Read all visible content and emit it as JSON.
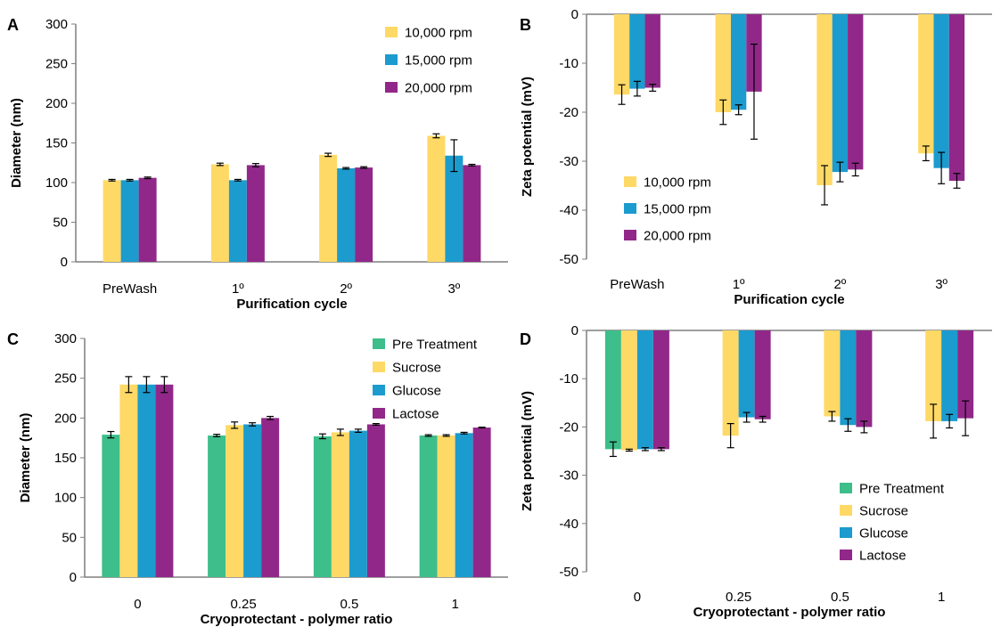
{
  "colors": {
    "rpm10000": "#FFD966",
    "rpm15000": "#1C9BCE",
    "rpm20000": "#912889",
    "pretreatment": "#3DBE8A",
    "sucrose": "#FFD966",
    "glucose": "#1C9BCE",
    "lactose": "#912889",
    "axis": "#7f7f7f",
    "errorbar": "#000000"
  },
  "chart_data": [
    {
      "panel": "A",
      "type": "bar",
      "xlabel": "Purification cycle",
      "ylabel": "Diameter (nm)",
      "categories": [
        "PreWash",
        "1º",
        "2º",
        "3º"
      ],
      "ylim": [
        0,
        300
      ],
      "yticks": [
        0,
        50,
        100,
        150,
        200,
        250,
        300
      ],
      "legend_position": "top-right",
      "series": [
        {
          "name": "10,000 rpm",
          "color_key": "rpm10000",
          "values": [
            103,
            123,
            135,
            159
          ],
          "errors": [
            1,
            1.5,
            2,
            2.5
          ]
        },
        {
          "name": "15,000 rpm",
          "color_key": "rpm15000",
          "values": [
            103,
            103,
            118,
            134
          ],
          "errors": [
            1,
            1,
            1,
            20
          ]
        },
        {
          "name": "20,000 rpm",
          "color_key": "rpm20000",
          "values": [
            106,
            122,
            119,
            122
          ],
          "errors": [
            1,
            2,
            1,
            1
          ]
        }
      ]
    },
    {
      "panel": "B",
      "type": "bar",
      "xlabel": "Purification cycle",
      "ylabel": "Zeta potential (mV)",
      "categories": [
        "PreWash",
        "1º",
        "2º",
        "3º"
      ],
      "ylim": [
        -50,
        0
      ],
      "yticks": [
        0,
        -10,
        -20,
        -30,
        -40,
        -50
      ],
      "legend_position": "bottom-left",
      "series": [
        {
          "name": "10,000 rpm",
          "color_key": "rpm10000",
          "values": [
            -16.4,
            -20.0,
            -34.9,
            -28.4
          ],
          "errors": [
            2.0,
            2.5,
            4.0,
            1.5
          ]
        },
        {
          "name": "15,000 rpm",
          "color_key": "rpm15000",
          "values": [
            -15.2,
            -19.5,
            -32.2,
            -31.4
          ],
          "errors": [
            1.5,
            1.0,
            2.0,
            3.2
          ]
        },
        {
          "name": "20,000 rpm",
          "color_key": "rpm20000",
          "values": [
            -15.0,
            -15.8,
            -31.7,
            -34.0
          ],
          "errors": [
            0.7,
            9.7,
            1.3,
            1.5
          ]
        }
      ]
    },
    {
      "panel": "C",
      "type": "bar",
      "xlabel": "Cryoprotectant  - polymer ratio",
      "ylabel": "Diameter (nm)",
      "categories": [
        "0",
        "0.25",
        "0.5",
        "1"
      ],
      "ylim": [
        0,
        300
      ],
      "yticks": [
        0,
        50,
        100,
        150,
        200,
        250,
        300
      ],
      "legend_position": "top-right",
      "series": [
        {
          "name": "Pre Treatment",
          "color_key": "pretreatment",
          "values": [
            179,
            178,
            177,
            178
          ],
          "errors": [
            4,
            1.5,
            3,
            1
          ]
        },
        {
          "name": "Sucrose",
          "color_key": "sucrose",
          "values": [
            242,
            191,
            182,
            178
          ],
          "errors": [
            10,
            4,
            4,
            1
          ]
        },
        {
          "name": "Glucose",
          "color_key": "glucose",
          "values": [
            242,
            192,
            184,
            181
          ],
          "errors": [
            10,
            2,
            2,
            1
          ]
        },
        {
          "name": "Lactose",
          "color_key": "lactose",
          "values": [
            242,
            200,
            192,
            188
          ],
          "errors": [
            10,
            2,
            1,
            0.5
          ]
        }
      ]
    },
    {
      "panel": "D",
      "type": "bar",
      "xlabel": "Cryoprotectant  - polymer ratio",
      "ylabel": "Zeta potential (mV)",
      "categories": [
        "0",
        "0.25",
        "0.5",
        "1"
      ],
      "ylim": [
        -50,
        0
      ],
      "yticks": [
        0,
        -10,
        -20,
        -30,
        -40,
        -50
      ],
      "legend_position": "bottom-right",
      "series": [
        {
          "name": "Pre Treatment",
          "color_key": "pretreatment",
          "values": [
            -24.6,
            null,
            null,
            null
          ],
          "errors": [
            1.5,
            0,
            0,
            0
          ]
        },
        {
          "name": "Sucrose",
          "color_key": "sucrose",
          "values": [
            -24.8,
            -21.8,
            -17.8,
            -18.8
          ],
          "errors": [
            0.2,
            2.5,
            1.0,
            3.5
          ]
        },
        {
          "name": "Glucose",
          "color_key": "glucose",
          "values": [
            -24.6,
            -18.0,
            -19.6,
            -18.8
          ],
          "errors": [
            0.3,
            1.0,
            1.3,
            1.4
          ]
        },
        {
          "name": "Lactose",
          "color_key": "lactose",
          "values": [
            -24.6,
            -18.4,
            -20.0,
            -18.2
          ],
          "errors": [
            0.3,
            0.6,
            1.2,
            3.6
          ]
        }
      ]
    }
  ]
}
